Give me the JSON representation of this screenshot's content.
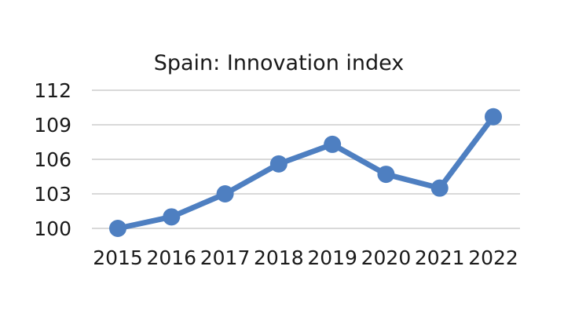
{
  "chart_data": {
    "type": "line",
    "title": "Spain: Innovation index",
    "xlabel": "",
    "ylabel": "",
    "categories": [
      "2015",
      "2016",
      "2017",
      "2018",
      "2019",
      "2020",
      "2021",
      "2022"
    ],
    "series": [
      {
        "name": "Innovation index",
        "values": [
          100.0,
          101.0,
          103.0,
          105.6,
          107.3,
          104.7,
          103.5,
          109.7
        ],
        "color": "#4e7fc1"
      }
    ],
    "ylim": [
      100,
      112
    ],
    "yticks": [
      100,
      103,
      106,
      109,
      112
    ],
    "grid": true,
    "legend": "none"
  }
}
